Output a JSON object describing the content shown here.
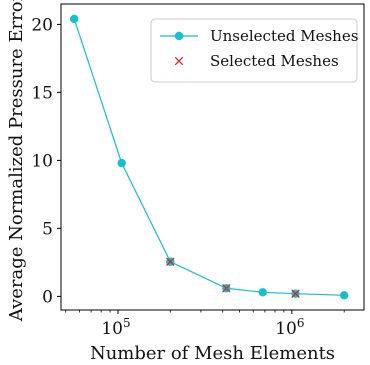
{
  "chart_data": {
    "type": "line",
    "xscale": "log",
    "xlabel": "Number of Mesh Elements",
    "ylabel": "Average Normalized Pressure Error",
    "xlim": [
      47000,
      2600000
    ],
    "ylim": [
      -1.0,
      21.5
    ],
    "x_ticks": [
      {
        "value": 100000,
        "base": "10",
        "exp": "5"
      },
      {
        "value": 1000000,
        "base": "10",
        "exp": "6"
      }
    ],
    "y_ticks": [
      0,
      5,
      10,
      15,
      20
    ],
    "grid": false,
    "legend_position": "upper-right",
    "series": [
      {
        "name": "Unselected Meshes",
        "style": "line-dot",
        "color": "#17becf",
        "x": [
          56000,
          105000,
          200000,
          420000,
          680000,
          1050000,
          2000000
        ],
        "y": [
          20.4,
          9.8,
          2.55,
          0.6,
          0.3,
          0.2,
          0.08
        ]
      },
      {
        "name": "Selected Meshes",
        "style": "x-marker",
        "color": "#d62728",
        "x": [
          200000,
          420000,
          1050000
        ],
        "y": [
          2.55,
          0.6,
          0.2
        ]
      }
    ]
  }
}
